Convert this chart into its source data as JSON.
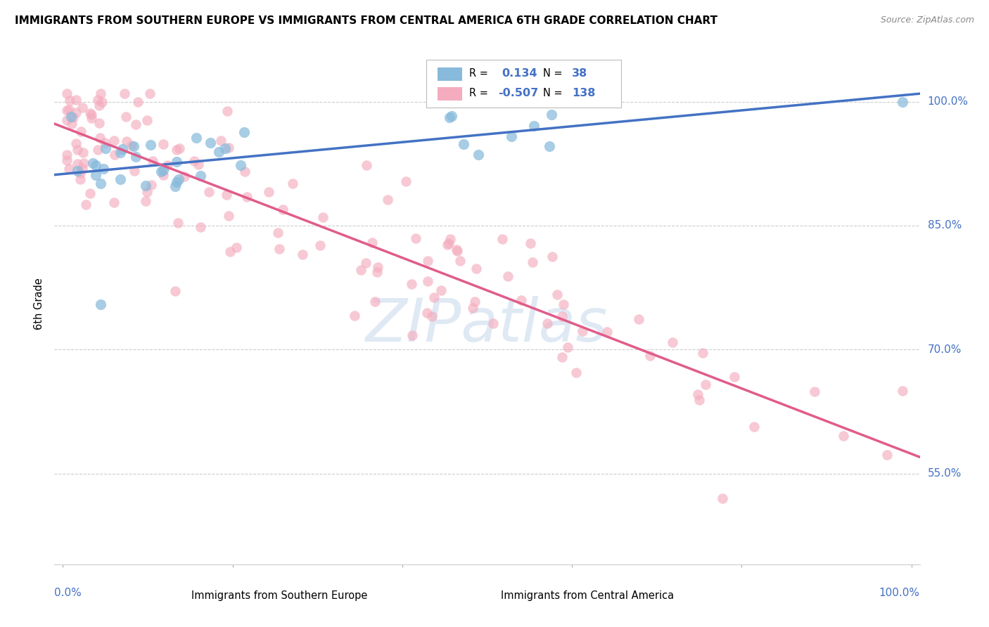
{
  "title": "IMMIGRANTS FROM SOUTHERN EUROPE VS IMMIGRANTS FROM CENTRAL AMERICA 6TH GRADE CORRELATION CHART",
  "source": "Source: ZipAtlas.com",
  "ylabel": "6th Grade",
  "ytick_labels": [
    "100.0%",
    "85.0%",
    "70.0%",
    "55.0%"
  ],
  "ytick_values": [
    1.0,
    0.85,
    0.7,
    0.55
  ],
  "legend_blue_r": "0.134",
  "legend_blue_n": "38",
  "legend_pink_r": "-0.507",
  "legend_pink_n": "138",
  "blue_color": "#87BADB",
  "pink_color": "#F4ACBE",
  "blue_line_color": "#4472C4",
  "pink_line_color": "#E05C8A",
  "watermark_color": "#C5D8EB",
  "label_blue": "Immigrants from Southern Europe",
  "label_pink": "Immigrants from Central America"
}
